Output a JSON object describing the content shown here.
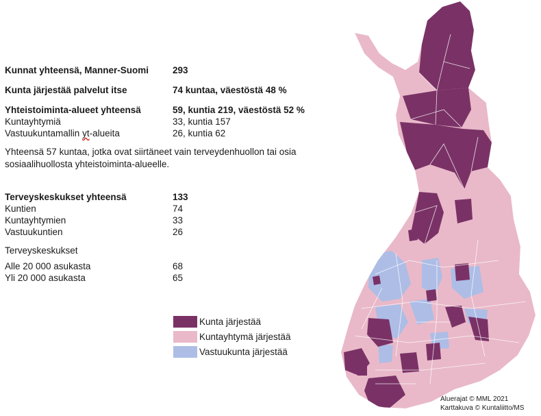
{
  "summary": {
    "total": {
      "label": "Kunnat yhteensä, Manner-Suomi",
      "value": "293"
    },
    "self": {
      "label": "Kunta järjestää palvelut itse",
      "value": "74 kuntaa, väestöstä 48 %"
    },
    "areas": {
      "label": "Yhteistoiminta-alueet yhteensä",
      "value": "59, kuntia 219, väestöstä 52 %"
    },
    "joint": {
      "label": "Kuntayhtymiä",
      "value": "33, kuntia 157"
    },
    "host_prefix": "Vastuukuntamallin ",
    "host_flag": "yt",
    "host_suffix": "-alueita",
    "host_value": "26, kuntia 62"
  },
  "note": "Yhteensä 57 kuntaa, jotka ovat siirtäneet vain terveydenhuollon tai osia sosiaalihuollosta yhteistoiminta-alueelle.",
  "health_centers": {
    "title": {
      "label": "Terveyskeskukset yhteensä",
      "value": "133"
    },
    "municipal": {
      "label": "Kuntien",
      "value": "74"
    },
    "joint": {
      "label": "Kuntayhtymien",
      "value": "33"
    },
    "host": {
      "label": "Vastuukuntien",
      "value": "26"
    }
  },
  "by_size": {
    "title": "Terveyskeskukset",
    "small": {
      "label": "Alle 20 000 asukasta",
      "value": "68"
    },
    "large": {
      "label": "Yli 20 000 asukasta",
      "value": "65"
    }
  },
  "legend": {
    "kunta": {
      "label": "Kunta järjestää",
      "color": "#7a3266"
    },
    "kuntayhtyma": {
      "label": "Kuntayhtymä järjestää",
      "color": "#e9b9c9"
    },
    "vastuukunta": {
      "label": "Vastuukunta järjestää",
      "color": "#adbde6"
    }
  },
  "credits": {
    "line1": "Aluerajat © MML 2021",
    "line2": "Karttakuva © Kuntaliitto/MS"
  }
}
